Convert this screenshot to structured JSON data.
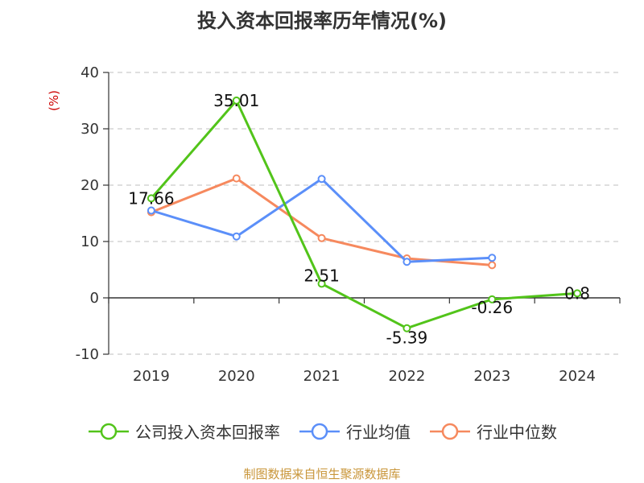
{
  "title": "投入资本回报率历年情况(%)",
  "source": "制图数据来自恒生聚源数据库",
  "colors": {
    "company": "#52c41a",
    "industry_avg": "#5b8ff9",
    "industry_median": "#f6895e",
    "unit": "#cc0000"
  },
  "chart_data": {
    "type": "line",
    "title": "投入资本回报率历年情况(%)",
    "ylabel": "(%)",
    "categories": [
      "2019",
      "2020",
      "2021",
      "2022",
      "2023",
      "2024"
    ],
    "ylim": [
      -10,
      40
    ],
    "yticks": [
      -10,
      0,
      10,
      20,
      30,
      40
    ],
    "grid": "horizontal dashed",
    "legend_position": "bottom",
    "series": [
      {
        "name": "公司投入资本回报率",
        "values": [
          17.66,
          35.01,
          2.51,
          -5.39,
          -0.26,
          0.8
        ],
        "labels": [
          "17.66",
          "35.01",
          "2.51",
          "-5.39",
          "-0.26",
          "0.8"
        ]
      },
      {
        "name": "行业均值",
        "values": [
          15.5,
          10.9,
          21.1,
          6.4,
          7.1,
          null
        ]
      },
      {
        "name": "行业中位数",
        "values": [
          15.2,
          21.2,
          10.6,
          7.0,
          5.8,
          null
        ]
      }
    ]
  }
}
